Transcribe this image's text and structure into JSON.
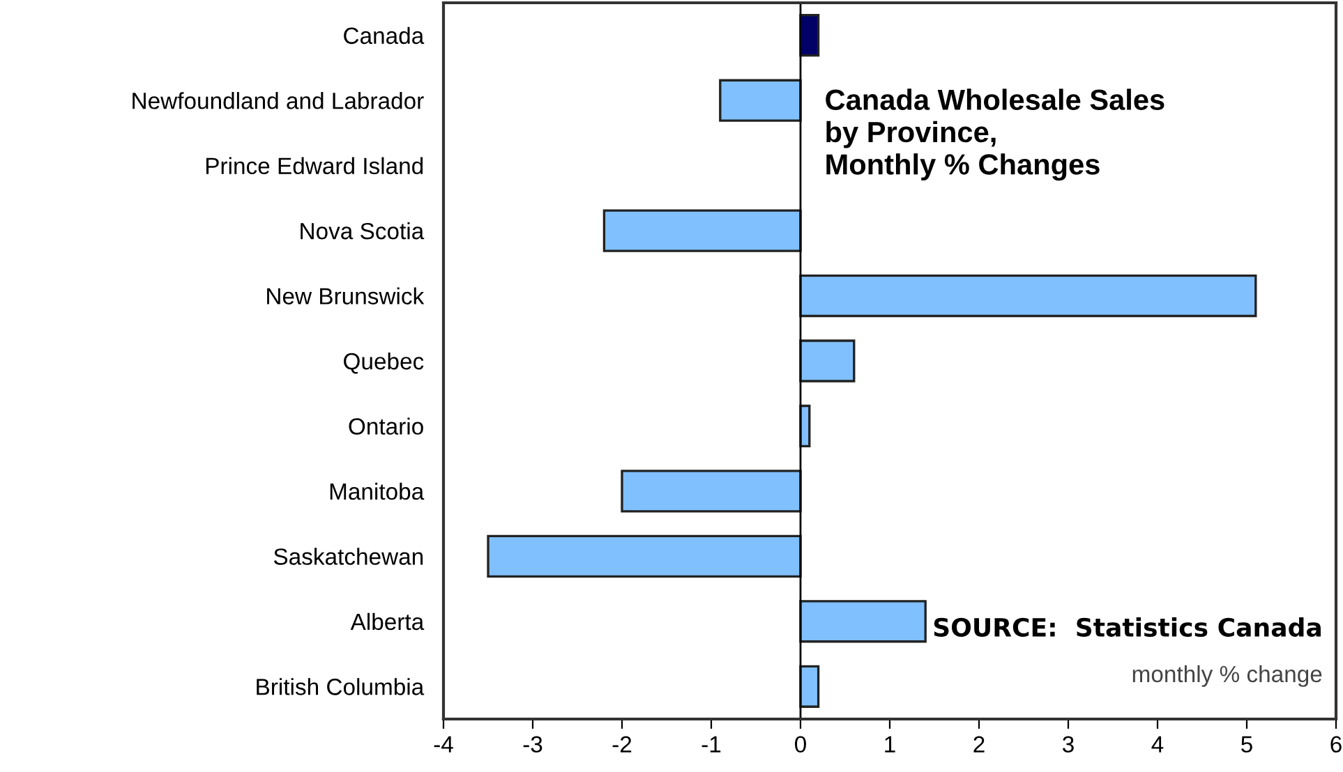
{
  "chart_data": {
    "type": "bar",
    "orientation": "horizontal",
    "title": "Canada Wholesale Sales\nby Province,\nMonthly % Changes",
    "categories": [
      "Canada",
      "Newfoundland and Labrador",
      "Prince Edward Island",
      "Nova Scotia",
      "New Brunswick",
      "Quebec",
      "Ontario",
      "Manitoba",
      "Saskatchewan",
      "Alberta",
      "British Columbia"
    ],
    "values": [
      0.2,
      -0.9,
      null,
      -2.2,
      5.1,
      0.6,
      0.1,
      -2.0,
      -3.5,
      1.4,
      0.2
    ],
    "colors": [
      "#000066",
      "#80c0ff",
      "#80c0ff",
      "#80c0ff",
      "#80c0ff",
      "#80c0ff",
      "#80c0ff",
      "#80c0ff",
      "#80c0ff",
      "#80c0ff",
      "#80c0ff"
    ],
    "xlim": [
      -4,
      6
    ],
    "xticks": [
      -4,
      -3,
      -2,
      -1,
      0,
      1,
      2,
      3,
      4,
      5,
      6
    ],
    "grid": false,
    "ref_lines": [
      {
        "axis": "x",
        "value": 0,
        "color": "#000000"
      }
    ],
    "annotations": [
      "SOURCE:  Statistics Canada",
      "monthly % change"
    ]
  }
}
